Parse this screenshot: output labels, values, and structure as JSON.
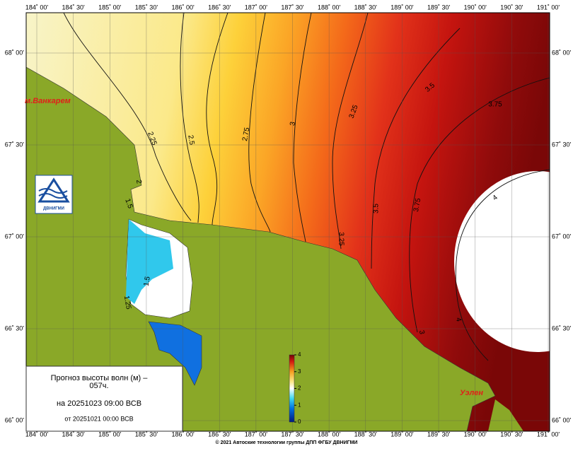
{
  "map": {
    "longitudes": [
      "184˚ 00'",
      "184˚ 30'",
      "185˚ 00'",
      "185˚ 30'",
      "186˚ 00'",
      "186˚ 30'",
      "187˚ 00'",
      "187˚ 30'",
      "188˚ 00'",
      "188˚ 30'",
      "189˚ 00'",
      "189˚ 30'",
      "190˚ 00'",
      "190˚ 30'",
      "191˚ 00'"
    ],
    "latitudes": [
      "68˚ 00'",
      "67˚ 30'",
      "67˚ 00'",
      "66˚ 30'",
      "66˚ 00'"
    ],
    "contour_labels": [
      2.25,
      2.5,
      2.75,
      3,
      3.25,
      3.5,
      3.75,
      3.5,
      3.75,
      4,
      4,
      3.25,
      3,
      2,
      1.5,
      1.25,
      1.5
    ],
    "places": [
      "м.Ванкарем",
      "Уэлен"
    ],
    "logo_text": "ДВНИГМИ",
    "legend": [
      "Прогноз высоты волн (м) –",
      "057ч.",
      "на 20251023 09:00 ВСВ",
      "от 20251021 00:00 ВСВ"
    ],
    "colorbar": {
      "lim": [
        0,
        4
      ],
      "ticks": [
        0,
        1,
        2,
        3,
        4
      ]
    },
    "footer": "© 2021 Автоские технологии группы ДПП ФГБУ ДВНИГМИ"
  }
}
